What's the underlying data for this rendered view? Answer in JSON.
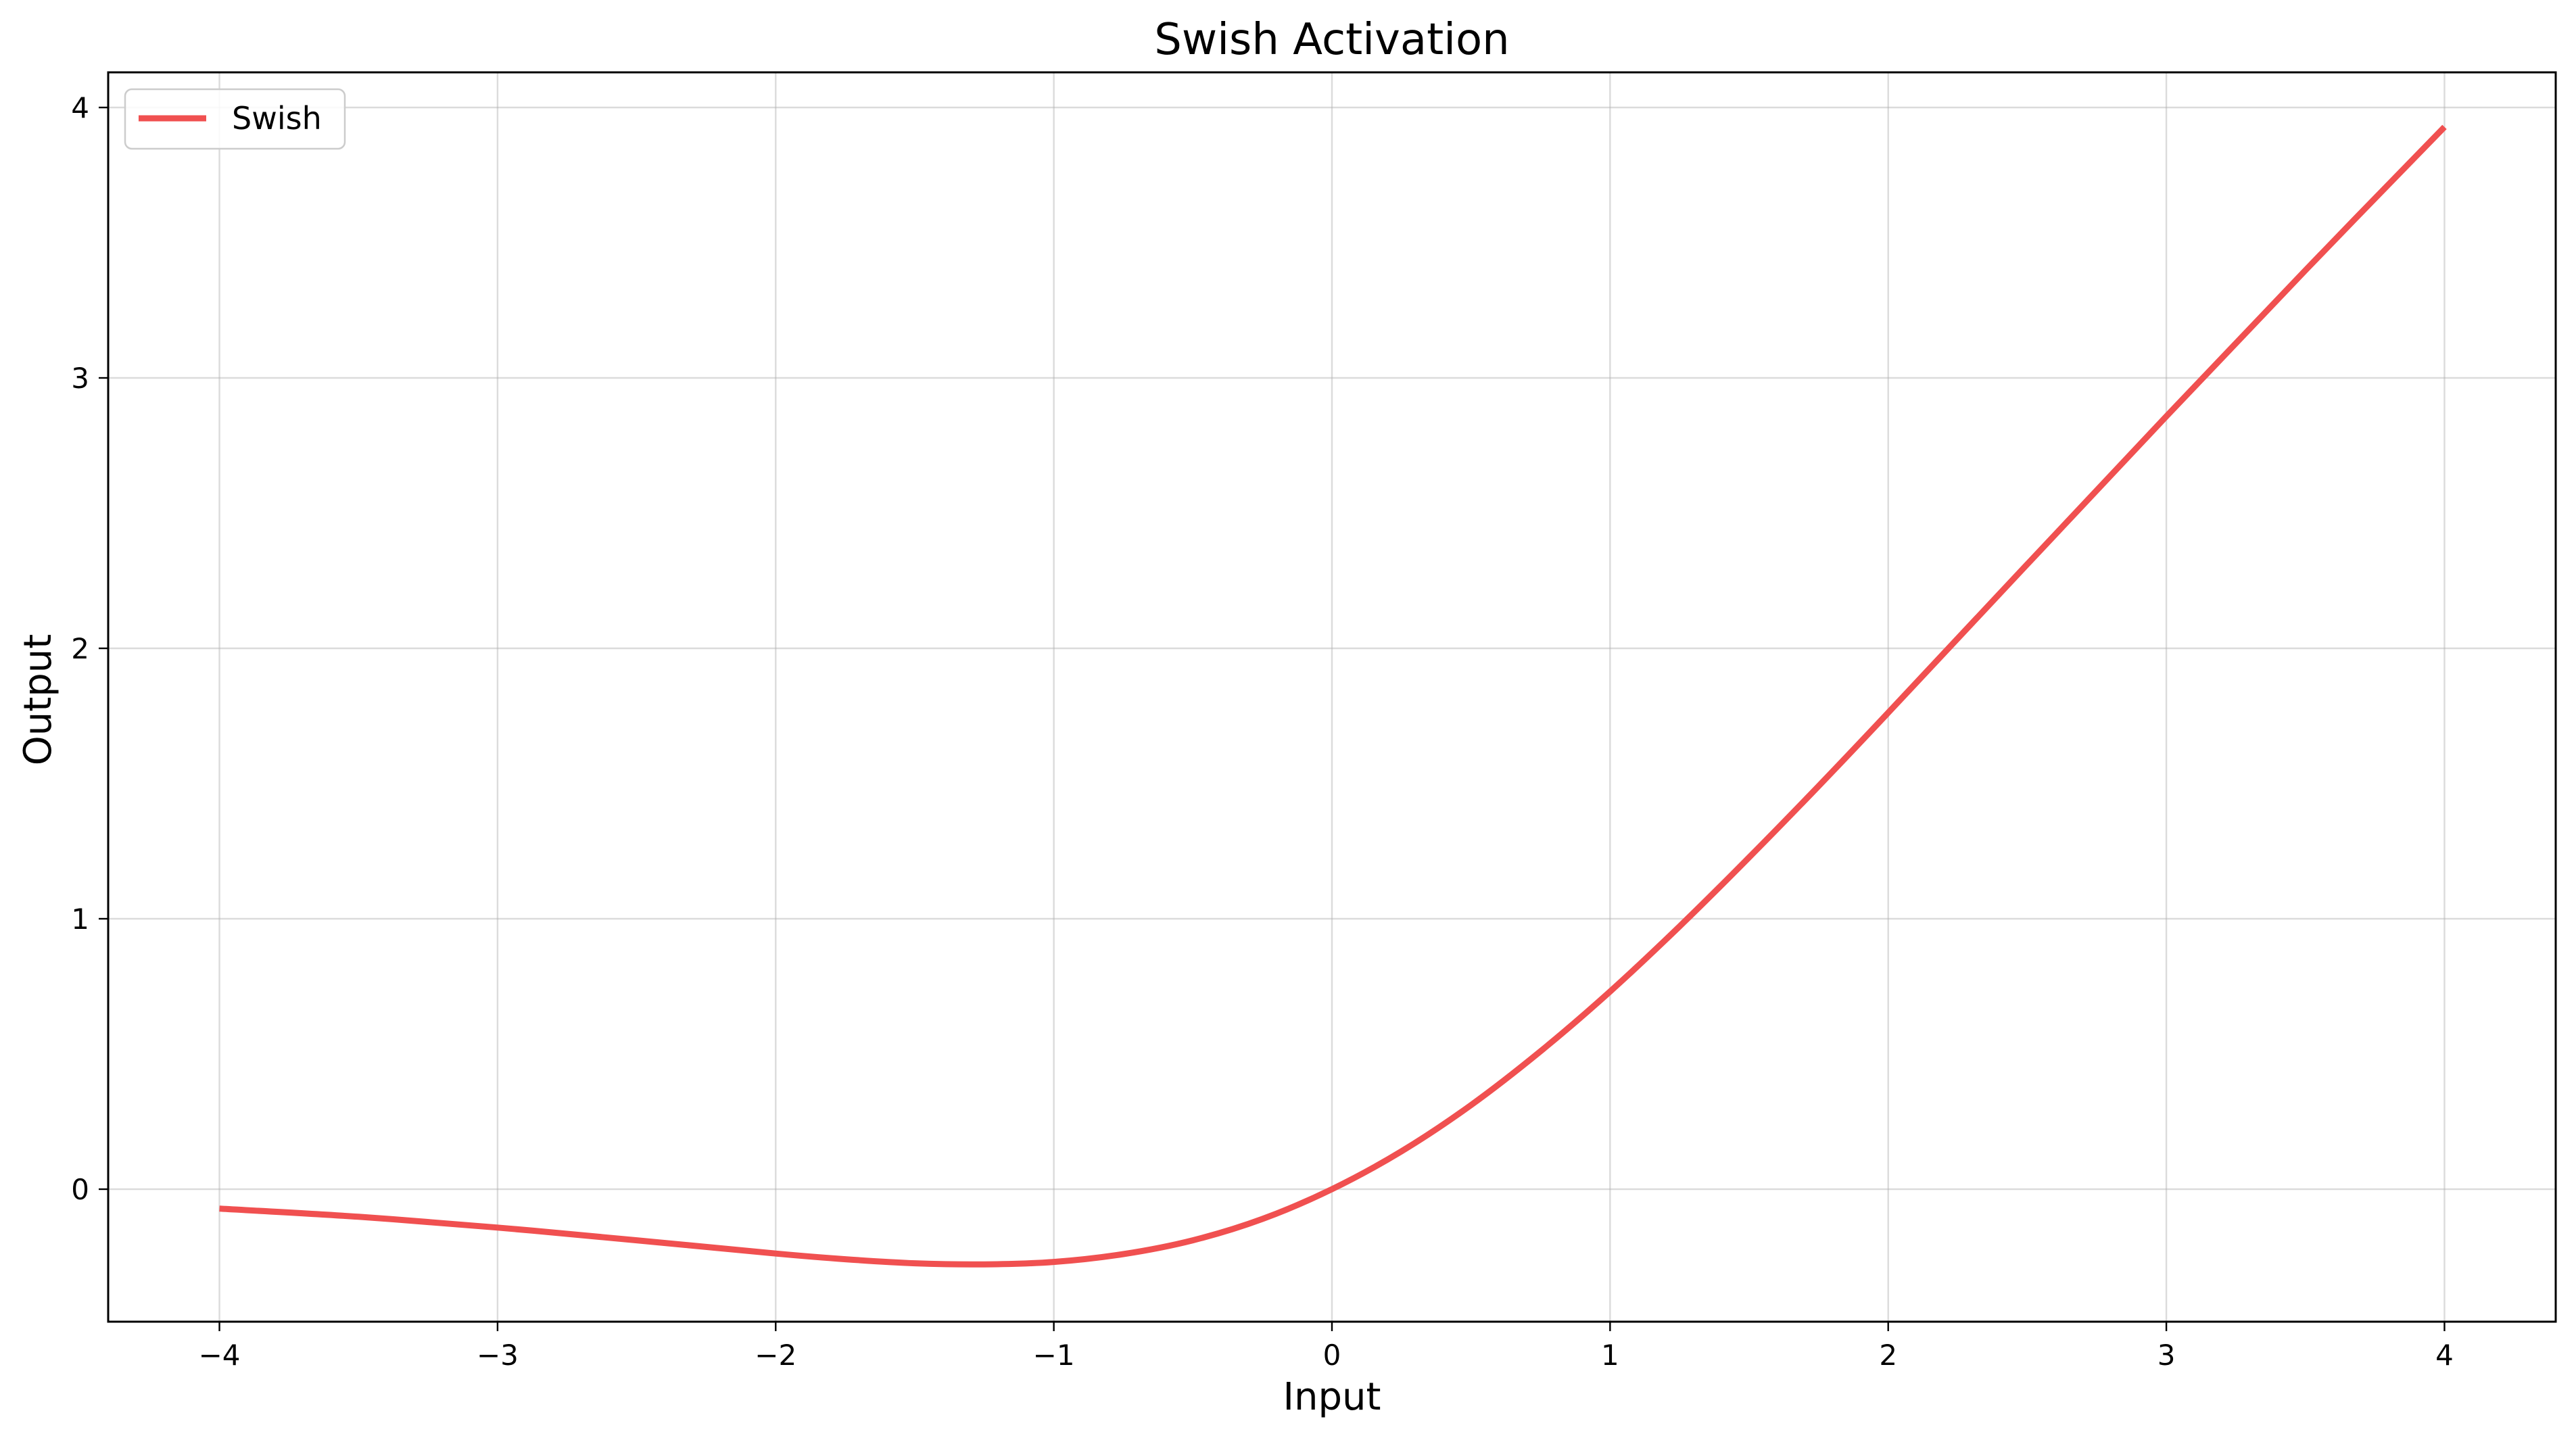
{
  "chart_data": {
    "type": "line",
    "title": "Swish Activation",
    "xlabel": "Input",
    "ylabel": "Output",
    "xlim": [
      -4.4,
      4.4
    ],
    "ylim": [
      -0.49,
      4.13
    ],
    "xticks": [
      -4,
      -3,
      -2,
      -1,
      0,
      1,
      2,
      3,
      4
    ],
    "xtick_labels": [
      "−4",
      "−3",
      "−2",
      "−1",
      "0",
      "1",
      "2",
      "3",
      "4"
    ],
    "yticks": [
      0,
      1,
      2,
      3,
      4
    ],
    "ytick_labels": [
      "0",
      "1",
      "2",
      "3",
      "4"
    ],
    "grid": true,
    "legend": {
      "position": "top-left"
    },
    "series": [
      {
        "name": "Swish",
        "color": "#f05050",
        "x": [
          -4.0,
          -3.5,
          -3.0,
          -2.5,
          -2.0,
          -1.75,
          -1.5,
          -1.25,
          -1.0,
          -0.75,
          -0.5,
          -0.25,
          0.0,
          0.25,
          0.5,
          0.75,
          1.0,
          1.25,
          1.5,
          1.75,
          2.0,
          2.5,
          3.0,
          3.5,
          4.0
        ],
        "y": [
          -0.072,
          -0.102,
          -0.142,
          -0.189,
          -0.238,
          -0.259,
          -0.274,
          -0.278,
          -0.269,
          -0.24,
          -0.189,
          -0.11,
          0.0,
          0.14,
          0.311,
          0.51,
          0.731,
          0.972,
          1.227,
          1.491,
          1.762,
          2.311,
          2.858,
          3.398,
          3.928
        ]
      }
    ]
  }
}
